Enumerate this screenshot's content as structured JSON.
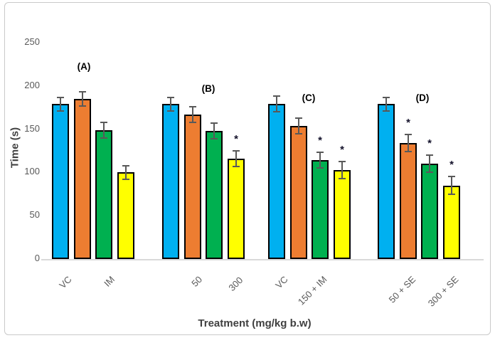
{
  "chart_data": {
    "type": "bar",
    "title": "",
    "xlabel": "Treatment (mg/kg b.w)",
    "ylabel": "Time (s)",
    "ylim": [
      0,
      250
    ],
    "yticks": [
      0,
      50,
      100,
      150,
      200,
      250
    ],
    "grid": false,
    "legend_position": "none",
    "bar_colors": [
      "#00B0F0",
      "#ED7D31",
      "#00B050",
      "#FFFF00"
    ],
    "error_bar_color": "#595959",
    "significance_marker": "*",
    "categories": [
      "VC",
      "IM",
      "50",
      "300",
      "VC",
      "150 + IM",
      "50 + SE",
      "300 + SE"
    ],
    "groups": [
      {
        "label": "(A)",
        "bars": [
          {
            "value": 179,
            "error": 8,
            "sig": false
          },
          {
            "value": 185,
            "error": 8,
            "sig": false
          },
          {
            "value": 149,
            "error": 9,
            "sig": false
          },
          {
            "value": 100,
            "error": 8,
            "sig": false
          }
        ]
      },
      {
        "label": "(B)",
        "bars": [
          {
            "value": 179,
            "error": 8,
            "sig": false
          },
          {
            "value": 167,
            "error": 9,
            "sig": false
          },
          {
            "value": 148,
            "error": 9,
            "sig": false
          },
          {
            "value": 116,
            "error": 9,
            "sig": true
          }
        ]
      },
      {
        "label": "(C)",
        "bars": [
          {
            "value": 179,
            "error": 9,
            "sig": false
          },
          {
            "value": 154,
            "error": 9,
            "sig": false
          },
          {
            "value": 114,
            "error": 9,
            "sig": true
          },
          {
            "value": 103,
            "error": 10,
            "sig": true
          }
        ]
      },
      {
        "label": "(D)",
        "bars": [
          {
            "value": 179,
            "error": 8,
            "sig": false
          },
          {
            "value": 134,
            "error": 10,
            "sig": true
          },
          {
            "value": 110,
            "error": 10,
            "sig": true
          },
          {
            "value": 85,
            "error": 10,
            "sig": true
          }
        ]
      }
    ]
  }
}
